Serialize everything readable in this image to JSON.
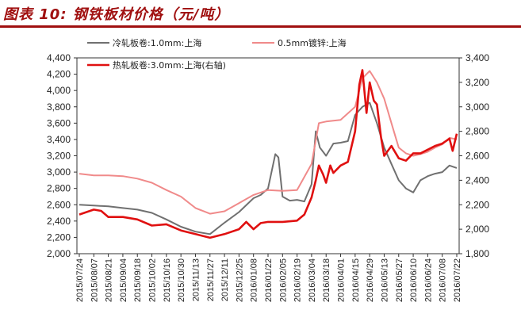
{
  "title": "图表 10: 钢铁板材价格（元/吨）",
  "colors": {
    "title": "#a01010",
    "cold": "#707070",
    "galv": "#f08a8a",
    "hot": "#e01010"
  },
  "chart_data": {
    "type": "line",
    "title": "钢铁板材价格（元/吨）",
    "grid": false,
    "legend_placement": "top",
    "x_tick_labels": [
      "2015/07/24",
      "2015/08/07",
      "2015/08/21",
      "2015/09/04",
      "2015/09/18",
      "2015/10/02",
      "2015/10/16",
      "2015/10/30",
      "2015/11/13",
      "2015/11/27",
      "2015/12/11",
      "2015/12/25",
      "2016/01/08",
      "2016/01/22",
      "2016/02/05",
      "2016/02/19",
      "2016/03/04",
      "2016/03/18",
      "2016/04/01",
      "2016/04/15",
      "2016/04/29",
      "2016/05/13",
      "2016/05/27",
      "2016/06/10",
      "2016/06/24",
      "2016/07/08",
      "2016/07/22"
    ],
    "y_left": {
      "ticks": [
        2000,
        2200,
        2400,
        2600,
        2800,
        3000,
        3200,
        3400,
        3600,
        3800,
        4000,
        4200,
        4400
      ],
      "tick_labels": [
        "2,000",
        "2,200",
        "2,400",
        "2,600",
        "2,800",
        "3,000",
        "3,200",
        "3,400",
        "3,600",
        "3,800",
        "4,000",
        "4,200",
        "4,400"
      ],
      "range": [
        2000,
        4400
      ]
    },
    "y_right": {
      "ticks": [
        1800,
        2000,
        2200,
        2400,
        2600,
        2800,
        3000,
        3200,
        3400
      ],
      "tick_labels": [
        "1,800",
        "2,000",
        "2,200",
        "2,400",
        "2,600",
        "2,800",
        "3,000",
        "3,200",
        "3,400"
      ],
      "range": [
        1800,
        3400
      ]
    },
    "series": [
      {
        "name": "冷轧板卷:1.0mm:上海",
        "axis": "left",
        "color": "#707070",
        "width": 2,
        "points": [
          [
            "2015/07/24",
            2600
          ],
          [
            "2015/08/07",
            2590
          ],
          [
            "2015/08/21",
            2580
          ],
          [
            "2015/09/04",
            2560
          ],
          [
            "2015/09/18",
            2540
          ],
          [
            "2015/10/02",
            2500
          ],
          [
            "2015/10/16",
            2420
          ],
          [
            "2015/10/30",
            2330
          ],
          [
            "2015/11/13",
            2270
          ],
          [
            "2015/11/27",
            2240
          ],
          [
            "2015/12/11",
            2380
          ],
          [
            "2015/12/25",
            2510
          ],
          [
            "2016/01/08",
            2680
          ],
          [
            "2016/01/15",
            2720
          ],
          [
            "2016/01/22",
            2800
          ],
          [
            "2016/01/29",
            3220
          ],
          [
            "2016/02/01",
            3180
          ],
          [
            "2016/02/05",
            2700
          ],
          [
            "2016/02/12",
            2650
          ],
          [
            "2016/02/19",
            2660
          ],
          [
            "2016/02/26",
            2640
          ],
          [
            "2016/03/04",
            2850
          ],
          [
            "2016/03/08",
            3500
          ],
          [
            "2016/03/12",
            3300
          ],
          [
            "2016/03/18",
            3200
          ],
          [
            "2016/03/25",
            3350
          ],
          [
            "2016/04/01",
            3360
          ],
          [
            "2016/04/08",
            3380
          ],
          [
            "2016/04/15",
            3700
          ],
          [
            "2016/04/22",
            3800
          ],
          [
            "2016/04/29",
            3850
          ],
          [
            "2016/05/06",
            3600
          ],
          [
            "2016/05/13",
            3300
          ],
          [
            "2016/05/20",
            3100
          ],
          [
            "2016/05/27",
            2900
          ],
          [
            "2016/06/03",
            2800
          ],
          [
            "2016/06/10",
            2750
          ],
          [
            "2016/06/17",
            2900
          ],
          [
            "2016/06/24",
            2950
          ],
          [
            "2016/07/01",
            2980
          ],
          [
            "2016/07/08",
            3000
          ],
          [
            "2016/07/15",
            3080
          ],
          [
            "2016/07/22",
            3050
          ]
        ]
      },
      {
        "name": "0.5mm镀锌:上海",
        "axis": "left",
        "color": "#f08a8a",
        "width": 2,
        "points": [
          [
            "2015/07/24",
            2980
          ],
          [
            "2015/08/07",
            2960
          ],
          [
            "2015/08/21",
            2960
          ],
          [
            "2015/09/04",
            2950
          ],
          [
            "2015/09/18",
            2920
          ],
          [
            "2015/10/02",
            2870
          ],
          [
            "2015/10/16",
            2780
          ],
          [
            "2015/10/30",
            2700
          ],
          [
            "2015/11/13",
            2560
          ],
          [
            "2015/11/27",
            2490
          ],
          [
            "2015/12/11",
            2520
          ],
          [
            "2015/12/25",
            2620
          ],
          [
            "2016/01/08",
            2720
          ],
          [
            "2016/01/22",
            2780
          ],
          [
            "2016/02/05",
            2770
          ],
          [
            "2016/02/19",
            2780
          ],
          [
            "2016/03/04",
            3100
          ],
          [
            "2016/03/11",
            3600
          ],
          [
            "2016/03/18",
            3620
          ],
          [
            "2016/04/01",
            3640
          ],
          [
            "2016/04/15",
            3800
          ],
          [
            "2016/04/22",
            4150
          ],
          [
            "2016/04/29",
            4240
          ],
          [
            "2016/05/06",
            4100
          ],
          [
            "2016/05/13",
            3900
          ],
          [
            "2016/05/20",
            3600
          ],
          [
            "2016/05/27",
            3300
          ],
          [
            "2016/06/03",
            3230
          ],
          [
            "2016/06/10",
            3200
          ],
          [
            "2016/06/17",
            3220
          ],
          [
            "2016/06/24",
            3250
          ],
          [
            "2016/07/01",
            3300
          ],
          [
            "2016/07/08",
            3340
          ],
          [
            "2016/07/15",
            3420
          ],
          [
            "2016/07/22",
            3400
          ]
        ]
      },
      {
        "name": "热轧板卷:3.0mm:上海(右轴)",
        "axis": "right",
        "color": "#e01010",
        "width": 2.6,
        "points": [
          [
            "2015/07/24",
            2120
          ],
          [
            "2015/08/07",
            2160
          ],
          [
            "2015/08/14",
            2150
          ],
          [
            "2015/08/21",
            2100
          ],
          [
            "2015/09/04",
            2100
          ],
          [
            "2015/09/18",
            2080
          ],
          [
            "2015/10/02",
            2030
          ],
          [
            "2015/10/16",
            2040
          ],
          [
            "2015/10/30",
            1990
          ],
          [
            "2015/11/13",
            1960
          ],
          [
            "2015/11/27",
            1930
          ],
          [
            "2015/12/11",
            1960
          ],
          [
            "2015/12/25",
            2000
          ],
          [
            "2016/01/01",
            2060
          ],
          [
            "2016/01/08",
            2000
          ],
          [
            "2016/01/15",
            2050
          ],
          [
            "2016/01/22",
            2060
          ],
          [
            "2016/02/05",
            2060
          ],
          [
            "2016/02/19",
            2070
          ],
          [
            "2016/02/26",
            2120
          ],
          [
            "2016/03/04",
            2260
          ],
          [
            "2016/03/08",
            2400
          ],
          [
            "2016/03/11",
            2520
          ],
          [
            "2016/03/15",
            2450
          ],
          [
            "2016/03/18",
            2380
          ],
          [
            "2016/03/22",
            2520
          ],
          [
            "2016/03/25",
            2460
          ],
          [
            "2016/04/01",
            2520
          ],
          [
            "2016/04/08",
            2550
          ],
          [
            "2016/04/15",
            2800
          ],
          [
            "2016/04/19",
            3180
          ],
          [
            "2016/04/22",
            3300
          ],
          [
            "2016/04/26",
            2950
          ],
          [
            "2016/04/29",
            3200
          ],
          [
            "2016/05/03",
            3050
          ],
          [
            "2016/05/06",
            3020
          ],
          [
            "2016/05/10",
            2750
          ],
          [
            "2016/05/13",
            2600
          ],
          [
            "2016/05/20",
            2680
          ],
          [
            "2016/05/27",
            2580
          ],
          [
            "2016/06/03",
            2560
          ],
          [
            "2016/06/10",
            2620
          ],
          [
            "2016/06/17",
            2620
          ],
          [
            "2016/06/24",
            2650
          ],
          [
            "2016/07/01",
            2680
          ],
          [
            "2016/07/08",
            2700
          ],
          [
            "2016/07/15",
            2740
          ],
          [
            "2016/07/18",
            2640
          ],
          [
            "2016/07/22",
            2780
          ]
        ]
      }
    ]
  }
}
